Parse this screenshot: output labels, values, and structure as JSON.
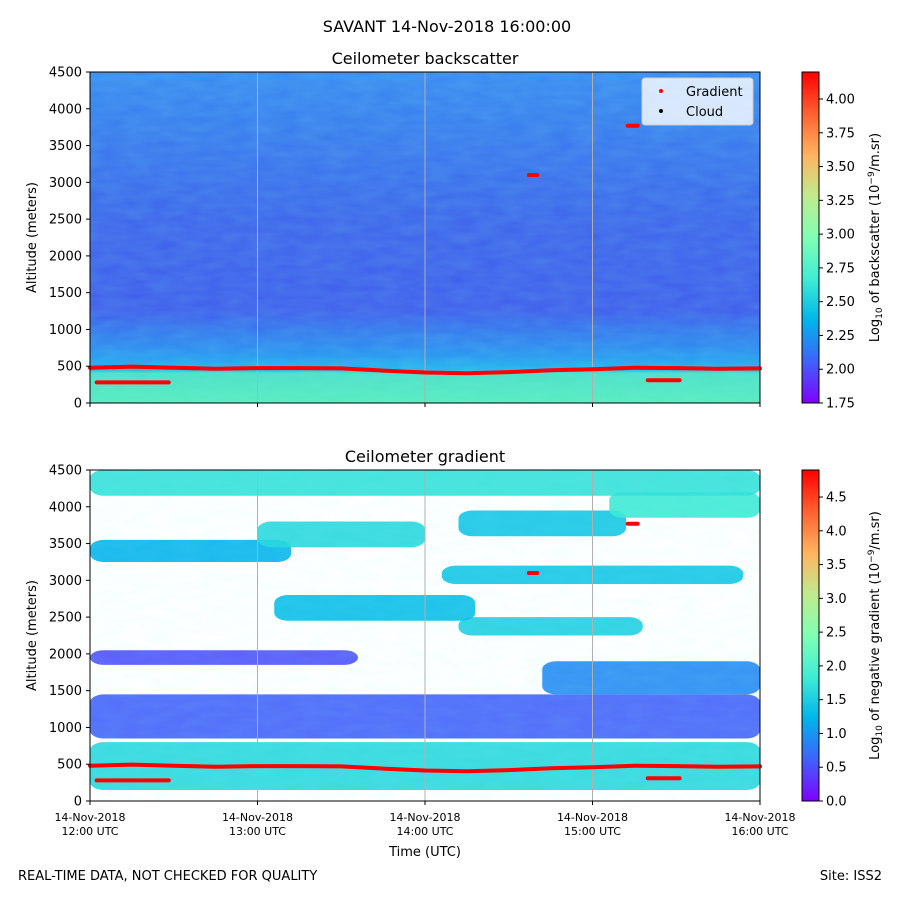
{
  "suptitle": "SAVANT 14-Nov-2018 16:00:00",
  "footer": {
    "left": "REAL-TIME DATA, NOT CHECKED FOR QUALITY",
    "right": "Site: ISS2"
  },
  "colors": {
    "gradient_marker": "#ff0000",
    "cloud_marker": "#000000",
    "colormap": "rainbow"
  },
  "chart_data": [
    {
      "type": "heatmap",
      "title": "Ceilometer backscatter",
      "ylabel": "Altitude (meters)",
      "ylim": [
        0,
        4500
      ],
      "yticks": [
        0,
        500,
        1000,
        1500,
        2000,
        2500,
        3000,
        3500,
        4000,
        4500
      ],
      "x_hours": [
        12,
        16
      ],
      "xtick_labels": [
        [
          "14-Nov-2018",
          "12:00 UTC"
        ],
        [
          "14-Nov-2018",
          "13:00 UTC"
        ],
        [
          "14-Nov-2018",
          "14:00 UTC"
        ],
        [
          "14-Nov-2018",
          "15:00 UTC"
        ],
        [
          "14-Nov-2018",
          "16:00 UTC"
        ]
      ],
      "grid": "vertical",
      "colorbar": {
        "label": "Log10 of backscatter (10^-9/m.sr)",
        "label_parts": [
          "Log",
          "10",
          " of backscatter (10",
          "−9",
          "/m.sr)"
        ],
        "range": [
          1.75,
          4.2
        ],
        "ticks": [
          "1.75",
          "2.00",
          "2.25",
          "2.50",
          "2.75",
          "3.00",
          "3.25",
          "3.50",
          "3.75",
          "4.00"
        ]
      },
      "legend": {
        "placement": "upper-right",
        "entries": [
          "Gradient",
          "Cloud"
        ]
      },
      "gradient_layer": [
        [
          12.0,
          480
        ],
        [
          12.25,
          495
        ],
        [
          12.5,
          480
        ],
        [
          12.75,
          465
        ],
        [
          13.0,
          475
        ],
        [
          13.25,
          475
        ],
        [
          13.5,
          470
        ],
        [
          13.75,
          440
        ],
        [
          14.0,
          415
        ],
        [
          14.25,
          405
        ],
        [
          14.5,
          420
        ],
        [
          14.75,
          445
        ],
        [
          15.0,
          460
        ],
        [
          15.25,
          480
        ],
        [
          15.5,
          475
        ],
        [
          15.75,
          465
        ],
        [
          16.0,
          470
        ]
      ],
      "gradient_segments": [
        {
          "x": [
            12.04,
            12.47
          ],
          "y": 280
        },
        {
          "x": [
            15.33,
            15.52
          ],
          "y": 310
        },
        {
          "x": [
            15.21,
            15.27
          ],
          "y": 3770
        },
        {
          "x": [
            14.62,
            14.67
          ],
          "y": 3100
        }
      ]
    },
    {
      "type": "heatmap",
      "title": "Ceilometer gradient",
      "ylabel": "Altitude (meters)",
      "xlabel": "Time (UTC)",
      "ylim": [
        0,
        4500
      ],
      "yticks": [
        0,
        500,
        1000,
        1500,
        2000,
        2500,
        3000,
        3500,
        4000,
        4500
      ],
      "x_hours": [
        12,
        16
      ],
      "xtick_labels": [
        [
          "14-Nov-2018",
          "12:00 UTC"
        ],
        [
          "14-Nov-2018",
          "13:00 UTC"
        ],
        [
          "14-Nov-2018",
          "14:00 UTC"
        ],
        [
          "14-Nov-2018",
          "15:00 UTC"
        ],
        [
          "14-Nov-2018",
          "16:00 UTC"
        ]
      ],
      "grid": "vertical",
      "colorbar": {
        "label": "Log10 of negative gradient (10^-9/m.sr)",
        "label_parts": [
          "Log",
          "10",
          " of negative gradient (10",
          "−9",
          "/m.sr)"
        ],
        "range": [
          0.0,
          4.9
        ],
        "ticks": [
          "0.0",
          "0.5",
          "1.0",
          "1.5",
          "2.0",
          "2.5",
          "3.0",
          "3.5",
          "4.0",
          "4.5"
        ]
      },
      "gradient_layer": [
        [
          12.0,
          480
        ],
        [
          12.25,
          495
        ],
        [
          12.5,
          480
        ],
        [
          12.75,
          465
        ],
        [
          13.0,
          475
        ],
        [
          13.25,
          475
        ],
        [
          13.5,
          470
        ],
        [
          13.75,
          440
        ],
        [
          14.0,
          415
        ],
        [
          14.25,
          405
        ],
        [
          14.5,
          420
        ],
        [
          14.75,
          445
        ],
        [
          15.0,
          460
        ],
        [
          15.25,
          480
        ],
        [
          15.5,
          475
        ],
        [
          15.75,
          465
        ],
        [
          16.0,
          470
        ]
      ],
      "gradient_segments": [
        {
          "x": [
            12.04,
            12.47
          ],
          "y": 280
        },
        {
          "x": [
            15.33,
            15.52
          ],
          "y": 310
        },
        {
          "x": [
            15.21,
            15.27
          ],
          "y": 3770
        },
        {
          "x": [
            14.62,
            14.67
          ],
          "y": 3100
        }
      ],
      "aerosol_bands": [
        {
          "y": [
            150,
            800
          ],
          "x": [
            12.0,
            16.0
          ],
          "level": 1.6
        },
        {
          "y": [
            850,
            1450
          ],
          "x": [
            12.0,
            16.0
          ],
          "level": 0.6
        },
        {
          "y": [
            1450,
            1900
          ],
          "x": [
            14.7,
            16.0
          ],
          "level": 0.9
        },
        {
          "y": [
            1850,
            2050
          ],
          "x": [
            12.0,
            13.6
          ],
          "level": 0.5
        },
        {
          "y": [
            2250,
            2500
          ],
          "x": [
            14.2,
            15.3
          ],
          "level": 1.5
        },
        {
          "y": [
            2450,
            2800
          ],
          "x": [
            13.1,
            14.3
          ],
          "level": 1.3
        },
        {
          "y": [
            2950,
            3200
          ],
          "x": [
            14.1,
            15.9
          ],
          "level": 1.4
        },
        {
          "y": [
            3250,
            3550
          ],
          "x": [
            12.0,
            13.2
          ],
          "level": 1.2
        },
        {
          "y": [
            3450,
            3800
          ],
          "x": [
            13.0,
            14.0
          ],
          "level": 1.6
        },
        {
          "y": [
            3600,
            3950
          ],
          "x": [
            14.2,
            15.2
          ],
          "level": 1.4
        },
        {
          "y": [
            3850,
            4200
          ],
          "x": [
            15.1,
            16.0
          ],
          "level": 1.8
        },
        {
          "y": [
            4150,
            4500
          ],
          "x": [
            12.0,
            16.0
          ],
          "level": 1.7
        }
      ]
    }
  ]
}
